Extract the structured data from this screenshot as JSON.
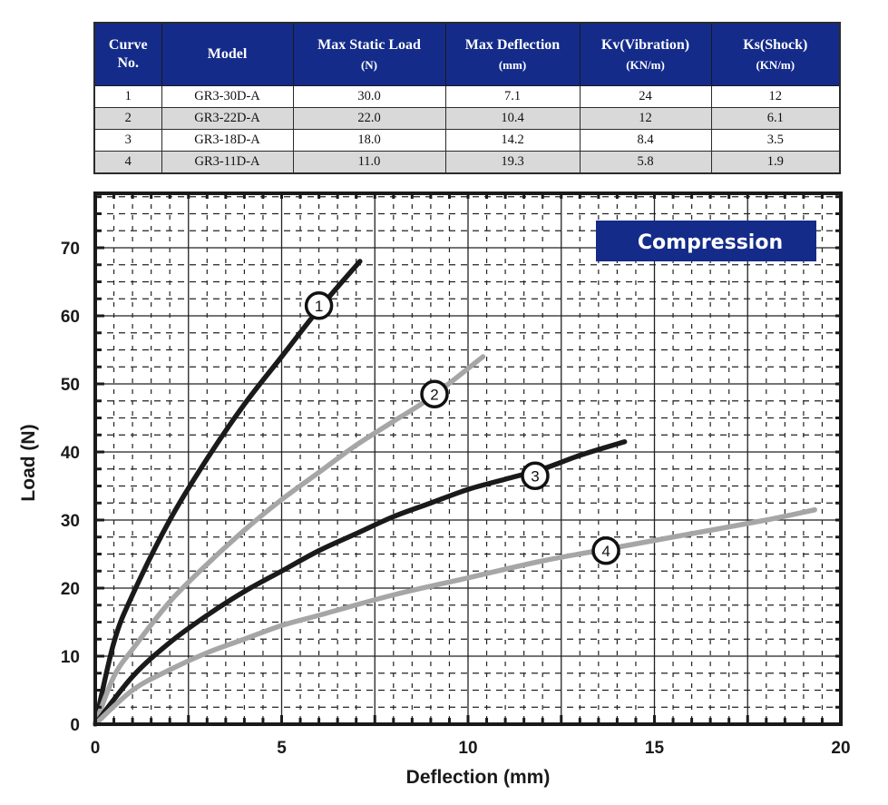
{
  "table": {
    "headers": [
      {
        "title": "Curve",
        "title2": "No.",
        "unit": ""
      },
      {
        "title": "Model",
        "title2": "",
        "unit": ""
      },
      {
        "title": "Max Static Load",
        "title2": "",
        "unit": "(N)"
      },
      {
        "title": "Max Deflection",
        "title2": "",
        "unit": "(mm)"
      },
      {
        "title": "Kv(Vibration)",
        "title2": "",
        "unit": "(KN/m)"
      },
      {
        "title": "Ks(Shock)",
        "title2": "",
        "unit": "(KN/m)"
      }
    ],
    "rows": [
      [
        "1",
        "GR3-30D-A",
        "30.0",
        "7.1",
        "24",
        "12"
      ],
      [
        "2",
        "GR3-22D-A",
        "22.0",
        "10.4",
        "12",
        "6.1"
      ],
      [
        "3",
        "GR3-18D-A",
        "18.0",
        "14.2",
        "8.4",
        "3.5"
      ],
      [
        "4",
        "GR3-11D-A",
        "11.0",
        "19.3",
        "5.8",
        "1.9"
      ]
    ],
    "colors": {
      "header_bg": "#142b8a",
      "alt_row_bg": "#d9d9d9"
    }
  },
  "chart_data": {
    "type": "line",
    "title": "Compression",
    "xlabel": "Deflection (mm)",
    "ylabel": "Load (N)",
    "xlim": [
      0,
      20
    ],
    "ylim": [
      0,
      78
    ],
    "xticks": [
      "0",
      "5",
      "10",
      "15",
      "20"
    ],
    "yticks": [
      "0",
      "10",
      "20",
      "30",
      "40",
      "50",
      "60",
      "70"
    ],
    "grid": true,
    "badge_color": "#142b8a",
    "series": [
      {
        "name": "1",
        "color": "#1a1a1a",
        "label_at": [
          6.0,
          61.5
        ],
        "x": [
          0,
          0.5,
          1,
          2,
          3,
          4,
          5,
          6,
          7.1
        ],
        "y": [
          0,
          12,
          19,
          30,
          39,
          47,
          54,
          61,
          68
        ]
      },
      {
        "name": "2",
        "color": "#a6a6a6",
        "label_at": [
          9.1,
          48.5
        ],
        "x": [
          0,
          0.5,
          1,
          2,
          3,
          4,
          5,
          6,
          7,
          8,
          9,
          10.4
        ],
        "y": [
          0,
          7,
          11,
          18,
          23.5,
          28.5,
          33,
          37,
          41,
          44.5,
          48,
          54
        ]
      },
      {
        "name": "3",
        "color": "#1a1a1a",
        "label_at": [
          11.8,
          36.5
        ],
        "x": [
          0,
          1,
          2,
          3,
          4,
          5,
          6,
          7,
          8,
          9,
          10,
          11,
          12,
          13,
          14.2
        ],
        "y": [
          0,
          7,
          12,
          16,
          19.5,
          22.5,
          25.5,
          28,
          30.5,
          32.5,
          34.5,
          36,
          37.5,
          39.5,
          41.5
        ]
      },
      {
        "name": "4",
        "color": "#a6a6a6",
        "label_at": [
          13.7,
          25.5
        ],
        "x": [
          0,
          1,
          2,
          3,
          4,
          5,
          6,
          8,
          10,
          12,
          14,
          16,
          18,
          19.3
        ],
        "y": [
          0,
          5,
          8,
          10.5,
          12.5,
          14.5,
          16,
          19,
          21.5,
          24,
          26,
          28,
          30,
          31.5
        ]
      }
    ]
  }
}
